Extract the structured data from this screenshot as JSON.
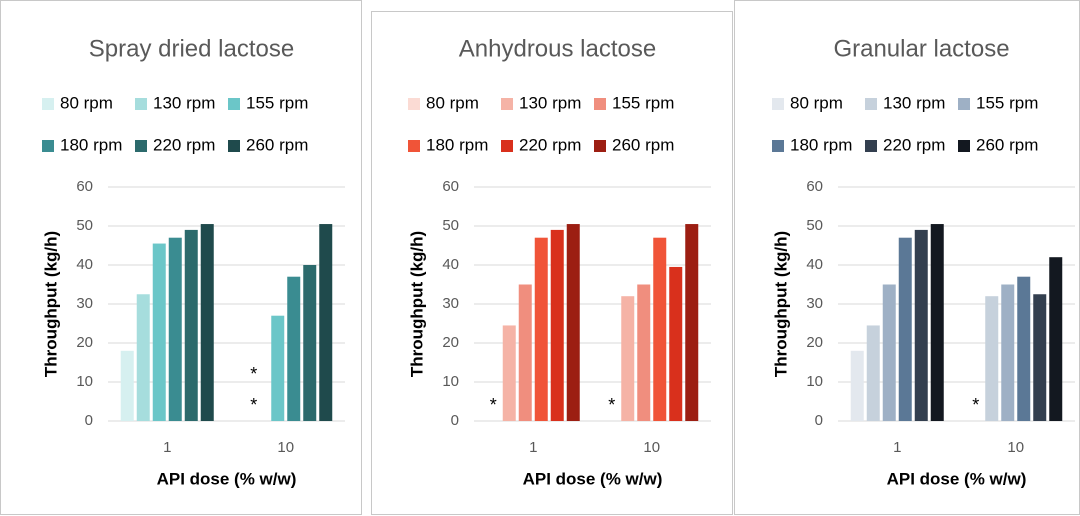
{
  "chart_data": [
    {
      "type": "bar",
      "title": "Spray dried lactose",
      "x_label": "API dose (% w/w)",
      "y_label": "Throughput (kg/h)",
      "categories": [
        "1",
        "10"
      ],
      "missing_label": "*",
      "series": [
        {
          "name": "80 rpm",
          "color": "#d6f0f0",
          "values": [
            18,
            null
          ]
        },
        {
          "name": "130 rpm",
          "color": "#a6dddd",
          "values": [
            32.5,
            null
          ]
        },
        {
          "name": "155 rpm",
          "color": "#6bc6c8",
          "values": [
            45.5,
            27
          ]
        },
        {
          "name": "180 rpm",
          "color": "#3a8c91",
          "values": [
            47,
            37
          ]
        },
        {
          "name": "220 rpm",
          "color": "#2c6a6c",
          "values": [
            49,
            40
          ]
        },
        {
          "name": "260 rpm",
          "color": "#1f4a4c",
          "values": [
            50.5,
            50.5
          ]
        }
      ],
      "ylim": [
        0,
        60
      ],
      "yticks": [
        0,
        10,
        20,
        30,
        40,
        50,
        60
      ],
      "grid": true
    },
    {
      "type": "bar",
      "title": "Anhydrous lactose",
      "x_label": "API dose (% w/w)",
      "y_label": "Throughput (kg/h)",
      "categories": [
        "1",
        "10"
      ],
      "missing_label": "*",
      "series": [
        {
          "name": "80 rpm",
          "color": "#fbdbd4",
          "values": [
            null,
            null
          ]
        },
        {
          "name": "130 rpm",
          "color": "#f5b3a6",
          "values": [
            24.5,
            32
          ]
        },
        {
          "name": "155 rpm",
          "color": "#f08e7e",
          "values": [
            35,
            35
          ]
        },
        {
          "name": "180 rpm",
          "color": "#f05438",
          "values": [
            47,
            47
          ]
        },
        {
          "name": "220 rpm",
          "color": "#d9301c",
          "values": [
            49,
            39.5
          ]
        },
        {
          "name": "260 rpm",
          "color": "#9c1e12",
          "values": [
            50.5,
            50.5
          ]
        }
      ],
      "ylim": [
        0,
        60
      ],
      "yticks": [
        0,
        10,
        20,
        30,
        40,
        50,
        60
      ],
      "grid": true
    },
    {
      "type": "bar",
      "title": "Granular lactose",
      "x_label": "API dose (% w/w)",
      "y_label": "Throughput (kg/h)",
      "categories": [
        "1",
        "10"
      ],
      "missing_label": "*",
      "series": [
        {
          "name": "80 rpm",
          "color": "#e3e8ee",
          "values": [
            18,
            null
          ]
        },
        {
          "name": "130 rpm",
          "color": "#c6d1dc",
          "values": [
            24.5,
            32
          ]
        },
        {
          "name": "155 rpm",
          "color": "#9eb0c5",
          "values": [
            35,
            35
          ]
        },
        {
          "name": "180 rpm",
          "color": "#5b7896",
          "values": [
            47,
            37
          ]
        },
        {
          "name": "220 rpm",
          "color": "#333f4f",
          "values": [
            49,
            32.5
          ]
        },
        {
          "name": "260 rpm",
          "color": "#131820",
          "values": [
            50.5,
            42
          ]
        }
      ],
      "ylim": [
        0,
        60
      ],
      "yticks": [
        0,
        10,
        20,
        30,
        40,
        50,
        60
      ],
      "grid": true
    }
  ]
}
